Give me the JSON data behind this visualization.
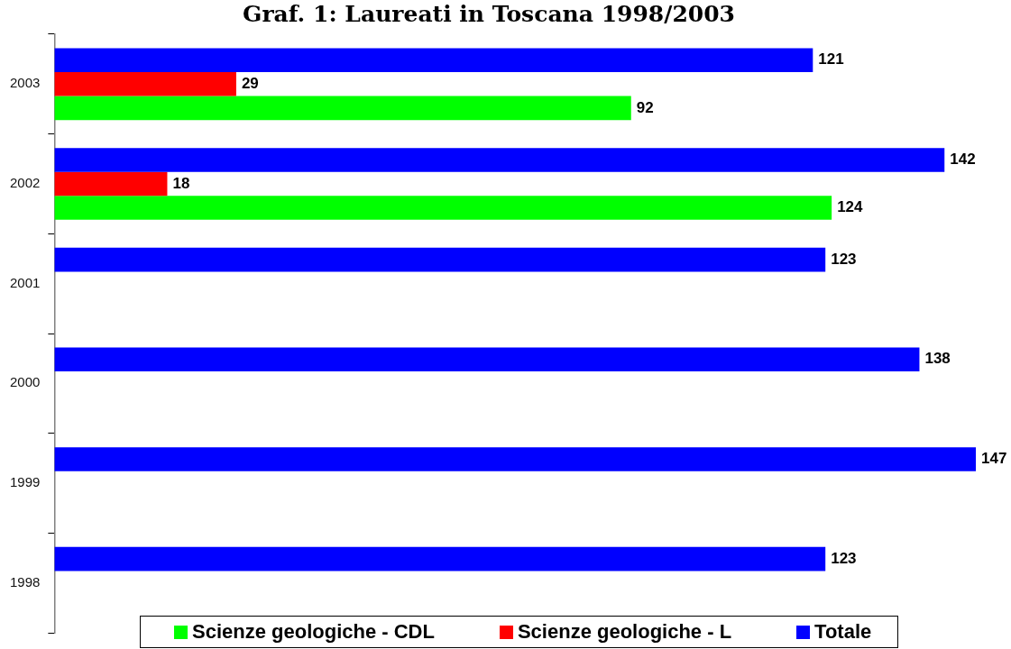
{
  "chart_data": {
    "type": "bar",
    "orientation": "horizontal",
    "title": "Graf. 1: Laureati in Toscana 1998/2003",
    "categories": [
      "2003",
      "2002",
      "2001",
      "2000",
      "1999",
      "1998"
    ],
    "series": [
      {
        "name": "Scienze geologiche - CDL",
        "color": "#00ff00",
        "values": [
          92,
          124,
          null,
          null,
          null,
          null
        ]
      },
      {
        "name": "Scienze geologiche - L",
        "color": "#ff0000",
        "values": [
          29,
          18,
          null,
          null,
          null,
          null
        ]
      },
      {
        "name": "Totale",
        "color": "#0000ff",
        "values": [
          121,
          142,
          123,
          138,
          147,
          123
        ]
      }
    ],
    "data_labels": true,
    "legend": "bottom",
    "tick_labels": "y"
  }
}
